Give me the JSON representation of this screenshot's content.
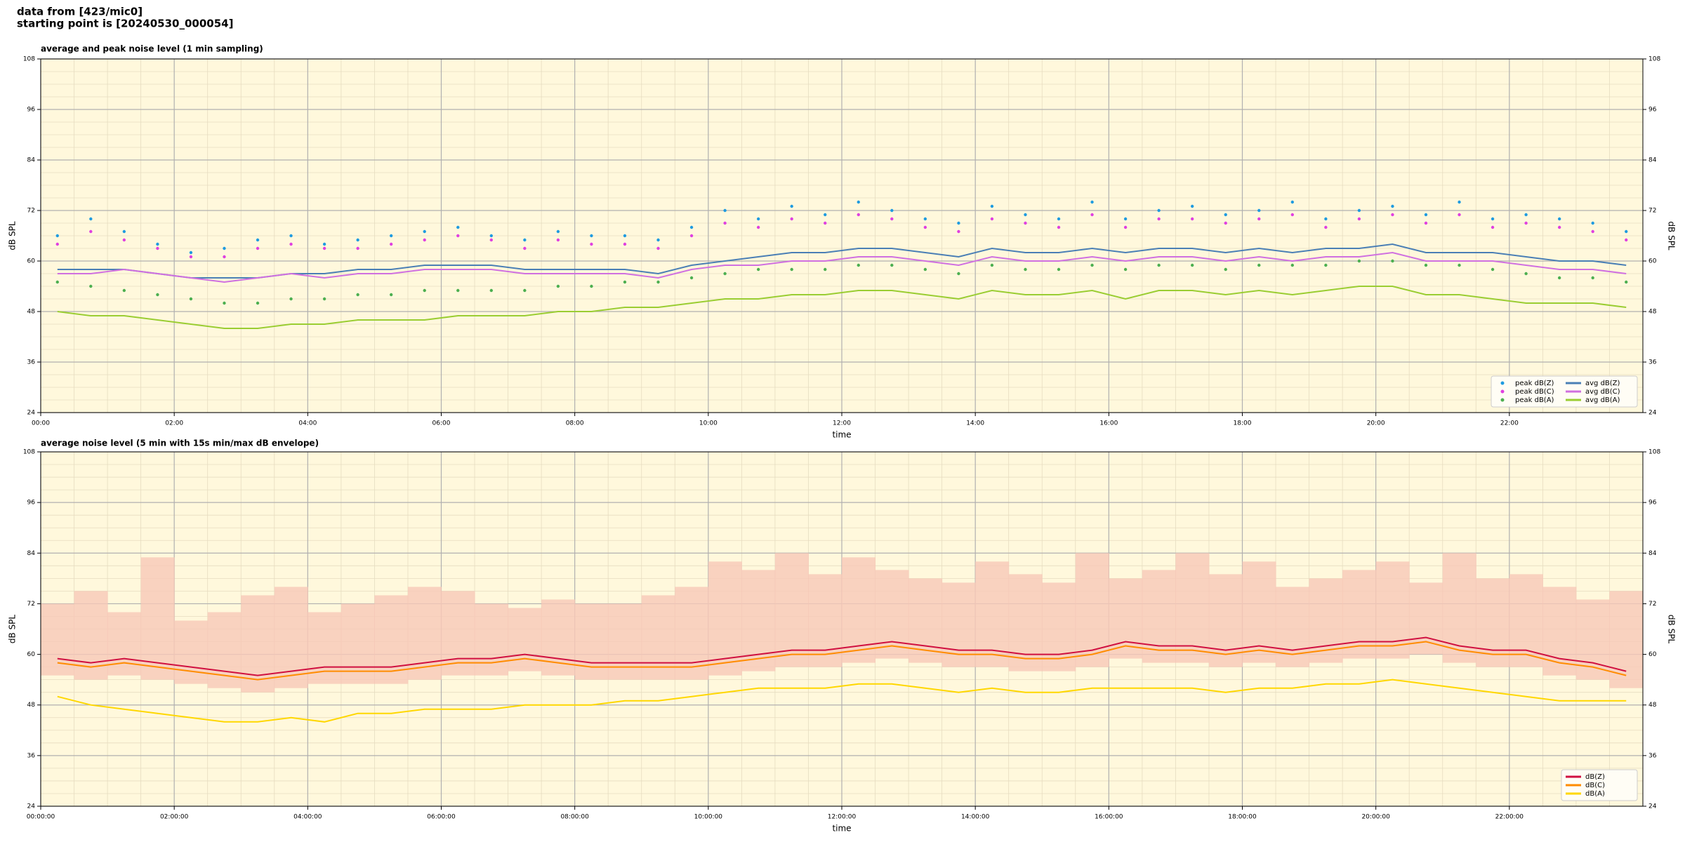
{
  "header": {
    "line1": "data from [423/mic0]",
    "line2": "starting point is [20240530_000054]"
  },
  "chart_data": [
    {
      "type": "line",
      "title": "average and peak noise level (1 min sampling)",
      "x_label": "time",
      "y_label": "dB SPL",
      "x": [
        "00:00",
        "00:30",
        "01:00",
        "01:30",
        "02:00",
        "02:30",
        "03:00",
        "03:30",
        "04:00",
        "04:30",
        "05:00",
        "05:30",
        "06:00",
        "06:30",
        "07:00",
        "07:30",
        "08:00",
        "08:30",
        "09:00",
        "09:30",
        "10:00",
        "10:30",
        "11:00",
        "11:30",
        "12:00",
        "12:30",
        "13:00",
        "13:30",
        "14:00",
        "14:30",
        "15:00",
        "15:30",
        "16:00",
        "16:30",
        "17:00",
        "17:30",
        "18:00",
        "18:30",
        "19:00",
        "19:30",
        "20:00",
        "20:30",
        "21:00",
        "21:30",
        "22:00",
        "22:30",
        "23:00",
        "23:30"
      ],
      "xticks": [
        "00:00",
        "02:00",
        "04:00",
        "06:00",
        "08:00",
        "10:00",
        "12:00",
        "14:00",
        "16:00",
        "18:00",
        "20:00",
        "22:00"
      ],
      "ylim": [
        24,
        108
      ],
      "yticks": [
        24,
        36,
        48,
        60,
        72,
        84,
        96,
        108
      ],
      "grid": true,
      "minor_grid": true,
      "background": "#fff8dc",
      "legend": "lower right",
      "legend_columns": 2,
      "series": [
        {
          "name": "peak dB(Z)",
          "type": "scatter",
          "color": "#1f9be0",
          "values": [
            66,
            70,
            67,
            64,
            62,
            63,
            65,
            66,
            64,
            65,
            66,
            67,
            68,
            66,
            65,
            67,
            66,
            66,
            65,
            68,
            72,
            70,
            73,
            71,
            74,
            72,
            70,
            69,
            73,
            71,
            70,
            74,
            70,
            72,
            73,
            71,
            72,
            74,
            70,
            72,
            73,
            71,
            74,
            70,
            71,
            70,
            69,
            67
          ]
        },
        {
          "name": "peak dB(C)",
          "type": "scatter",
          "color": "#e040e0",
          "values": [
            64,
            67,
            65,
            63,
            61,
            61,
            63,
            64,
            63,
            63,
            64,
            65,
            66,
            65,
            63,
            65,
            64,
            64,
            63,
            66,
            69,
            68,
            70,
            69,
            71,
            70,
            68,
            67,
            70,
            69,
            68,
            71,
            68,
            70,
            70,
            69,
            70,
            71,
            68,
            70,
            71,
            69,
            71,
            68,
            69,
            68,
            67,
            65
          ]
        },
        {
          "name": "peak dB(A)",
          "type": "scatter",
          "color": "#4caf50",
          "values": [
            55,
            54,
            53,
            52,
            51,
            50,
            50,
            51,
            51,
            52,
            52,
            53,
            53,
            53,
            53,
            54,
            54,
            55,
            55,
            56,
            57,
            58,
            58,
            58,
            59,
            59,
            58,
            57,
            59,
            58,
            58,
            59,
            58,
            59,
            59,
            58,
            59,
            59,
            59,
            60,
            60,
            59,
            59,
            58,
            57,
            56,
            56,
            55
          ]
        },
        {
          "name": "avg dB(Z)",
          "type": "line",
          "color": "#4a7fb5",
          "values": [
            58,
            58,
            58,
            57,
            56,
            56,
            56,
            57,
            57,
            58,
            58,
            59,
            59,
            59,
            58,
            58,
            58,
            58,
            57,
            59,
            60,
            61,
            62,
            62,
            63,
            63,
            62,
            61,
            63,
            62,
            62,
            63,
            62,
            63,
            63,
            62,
            63,
            62,
            63,
            63,
            64,
            62,
            62,
            62,
            61,
            60,
            60,
            59
          ]
        },
        {
          "name": "avg dB(C)",
          "type": "line",
          "color": "#d070e0",
          "values": [
            57,
            57,
            58,
            57,
            56,
            55,
            56,
            57,
            56,
            57,
            57,
            58,
            58,
            58,
            57,
            57,
            57,
            57,
            56,
            58,
            59,
            59,
            60,
            60,
            61,
            61,
            60,
            59,
            61,
            60,
            60,
            61,
            60,
            61,
            61,
            60,
            61,
            60,
            61,
            61,
            62,
            60,
            60,
            60,
            59,
            58,
            58,
            57
          ]
        },
        {
          "name": "avg dB(A)",
          "type": "line",
          "color": "#9acd32",
          "values": [
            48,
            47,
            47,
            46,
            45,
            44,
            44,
            45,
            45,
            46,
            46,
            46,
            47,
            47,
            47,
            48,
            48,
            49,
            49,
            50,
            51,
            51,
            52,
            52,
            53,
            53,
            52,
            51,
            53,
            52,
            52,
            53,
            51,
            53,
            53,
            52,
            53,
            52,
            53,
            54,
            54,
            52,
            52,
            51,
            50,
            50,
            50,
            49
          ]
        }
      ]
    },
    {
      "type": "line",
      "title": "average noise level (5 min with 15s min/max dB envelope)",
      "x_label": "time",
      "y_label": "dB SPL",
      "x": [
        "00:00:00",
        "00:30:00",
        "01:00:00",
        "01:30:00",
        "02:00:00",
        "02:30:00",
        "03:00:00",
        "03:30:00",
        "04:00:00",
        "04:30:00",
        "05:00:00",
        "05:30:00",
        "06:00:00",
        "06:30:00",
        "07:00:00",
        "07:30:00",
        "08:00:00",
        "08:30:00",
        "09:00:00",
        "09:30:00",
        "10:00:00",
        "10:30:00",
        "11:00:00",
        "11:30:00",
        "12:00:00",
        "12:30:00",
        "13:00:00",
        "13:30:00",
        "14:00:00",
        "14:30:00",
        "15:00:00",
        "15:30:00",
        "16:00:00",
        "16:30:00",
        "17:00:00",
        "17:30:00",
        "18:00:00",
        "18:30:00",
        "19:00:00",
        "19:30:00",
        "20:00:00",
        "20:30:00",
        "21:00:00",
        "21:30:00",
        "22:00:00",
        "22:30:00",
        "23:00:00",
        "23:30:00"
      ],
      "xticks": [
        "00:00:00",
        "02:00:00",
        "04:00:00",
        "06:00:00",
        "08:00:00",
        "10:00:00",
        "12:00:00",
        "14:00:00",
        "16:00:00",
        "18:00:00",
        "20:00:00",
        "22:00:00"
      ],
      "ylim": [
        24,
        108
      ],
      "yticks": [
        24,
        36,
        48,
        60,
        72,
        84,
        96,
        108
      ],
      "grid": true,
      "minor_grid": true,
      "background": "#fff8dc",
      "legend": "lower right",
      "legend_columns": 1,
      "envelope": {
        "color": "#f8c8b8",
        "lower": [
          55,
          54,
          55,
          54,
          53,
          52,
          51,
          52,
          53,
          53,
          53,
          54,
          55,
          55,
          56,
          55,
          54,
          54,
          54,
          54,
          55,
          56,
          57,
          57,
          58,
          59,
          58,
          57,
          57,
          56,
          56,
          57,
          59,
          58,
          58,
          57,
          58,
          57,
          58,
          59,
          59,
          60,
          58,
          57,
          57,
          55,
          54,
          52
        ],
        "upper": [
          72,
          75,
          70,
          83,
          68,
          70,
          74,
          76,
          70,
          72,
          74,
          76,
          75,
          72,
          71,
          73,
          72,
          72,
          74,
          76,
          82,
          80,
          84,
          79,
          83,
          80,
          78,
          77,
          82,
          79,
          77,
          84,
          78,
          80,
          84,
          79,
          82,
          76,
          78,
          80,
          82,
          77,
          84,
          78,
          79,
          76,
          73,
          75
        ]
      },
      "series": [
        {
          "name": "dB(Z)",
          "type": "line",
          "color": "#d01040",
          "values": [
            59,
            58,
            59,
            58,
            57,
            56,
            55,
            56,
            57,
            57,
            57,
            58,
            59,
            59,
            60,
            59,
            58,
            58,
            58,
            58,
            59,
            60,
            61,
            61,
            62,
            63,
            62,
            61,
            61,
            60,
            60,
            61,
            63,
            62,
            62,
            61,
            62,
            61,
            62,
            63,
            63,
            64,
            62,
            61,
            61,
            59,
            58,
            56
          ]
        },
        {
          "name": "dB(C)",
          "type": "line",
          "color": "#ff8c00",
          "values": [
            58,
            57,
            58,
            57,
            56,
            55,
            54,
            55,
            56,
            56,
            56,
            57,
            58,
            58,
            59,
            58,
            57,
            57,
            57,
            57,
            58,
            59,
            60,
            60,
            61,
            62,
            61,
            60,
            60,
            59,
            59,
            60,
            62,
            61,
            61,
            60,
            61,
            60,
            61,
            62,
            62,
            63,
            61,
            60,
            60,
            58,
            57,
            55
          ]
        },
        {
          "name": "dB(A)",
          "type": "line",
          "color": "#ffd700",
          "values": [
            50,
            48,
            47,
            46,
            45,
            44,
            44,
            45,
            44,
            46,
            46,
            47,
            47,
            47,
            48,
            48,
            48,
            49,
            49,
            50,
            51,
            52,
            52,
            52,
            53,
            53,
            52,
            51,
            52,
            51,
            51,
            52,
            52,
            52,
            52,
            51,
            52,
            52,
            53,
            53,
            54,
            53,
            52,
            51,
            50,
            49,
            49,
            49
          ]
        }
      ]
    }
  ]
}
